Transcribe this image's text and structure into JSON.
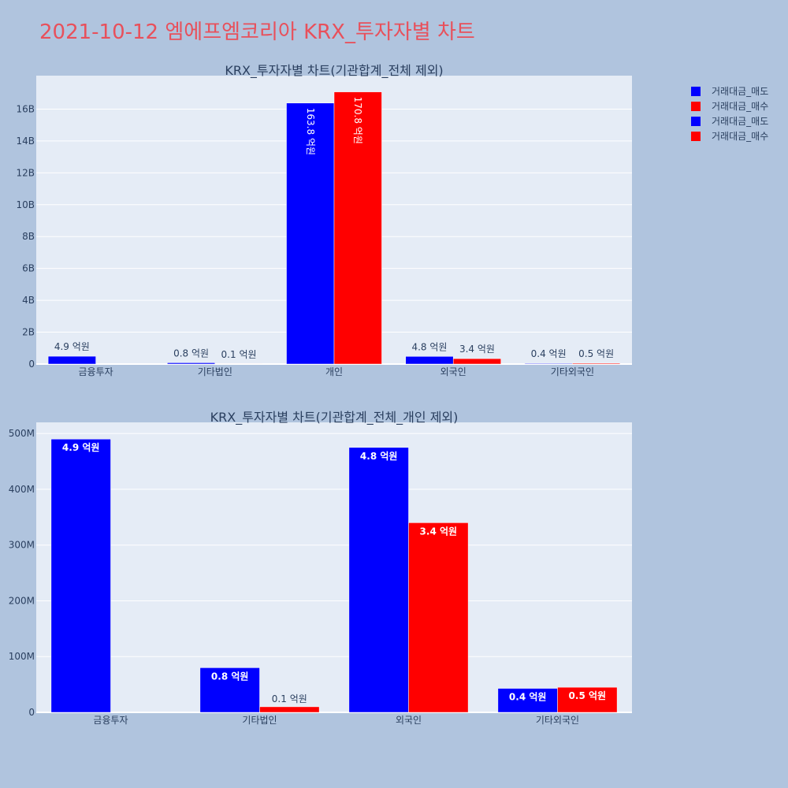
{
  "title": "2021-10-12 엠에프엠코리아 KRX_투자자별 차트",
  "legend": [
    {
      "name": "거래대금_매도",
      "color": "#0000ff"
    },
    {
      "name": "거래대금_매수",
      "color": "#ff0000"
    },
    {
      "name": "거래대금_매도",
      "color": "#0000ff"
    },
    {
      "name": "거래대금_매수",
      "color": "#ff0000"
    }
  ],
  "chart_data": [
    {
      "type": "bar",
      "title": "KRX_투자자별 차트(기관합계_전체 제외)",
      "categories": [
        "금융투자",
        "기타법인",
        "개인",
        "외국인",
        "기타외국인"
      ],
      "series": [
        {
          "name": "거래대금_매도",
          "color": "#0000ff",
          "values": [
            490000000,
            80000000,
            16380000000,
            480000000,
            40000000
          ],
          "labels": [
            "4.9 억원",
            "0.8 억원",
            "163.8 억원",
            "4.8 억원",
            "0.4 억원"
          ]
        },
        {
          "name": "거래대금_매수",
          "color": "#ff0000",
          "values": [
            0,
            10000000,
            17080000000,
            340000000,
            50000000
          ],
          "labels": [
            "",
            "0.1 억원",
            "170.8 억원",
            "3.4 억원",
            "0.5 억원"
          ]
        }
      ],
      "ylim": [
        0,
        18100000000
      ],
      "yticks": [
        0,
        2000000000,
        4000000000,
        6000000000,
        8000000000,
        10000000000,
        12000000000,
        14000000000,
        16000000000
      ],
      "ytick_labels": [
        "0",
        "2B",
        "4B",
        "6B",
        "8B",
        "10B",
        "12B",
        "14B",
        "16B"
      ]
    },
    {
      "type": "bar",
      "title": "KRX_투자자별 차트(기관합계_전체_개인 제외)",
      "categories": [
        "금융투자",
        "기타법인",
        "외국인",
        "기타외국인"
      ],
      "series": [
        {
          "name": "거래대금_매도",
          "color": "#0000ff",
          "values": [
            490000000,
            80000000,
            475000000,
            43000000
          ],
          "labels": [
            "4.9 억원",
            "0.8 억원",
            "4.8 억원",
            "0.4 억원"
          ]
        },
        {
          "name": "거래대금_매수",
          "color": "#ff0000",
          "values": [
            0,
            10000000,
            340000000,
            45000000
          ],
          "labels": [
            "",
            "0.1 억원",
            "3.4 억원",
            "0.5 억원"
          ]
        }
      ],
      "ylim": [
        0,
        520000000
      ],
      "yticks": [
        0,
        100000000,
        200000000,
        300000000,
        400000000,
        500000000
      ],
      "ytick_labels": [
        "0",
        "100M",
        "200M",
        "300M",
        "400M",
        "500M"
      ]
    }
  ]
}
